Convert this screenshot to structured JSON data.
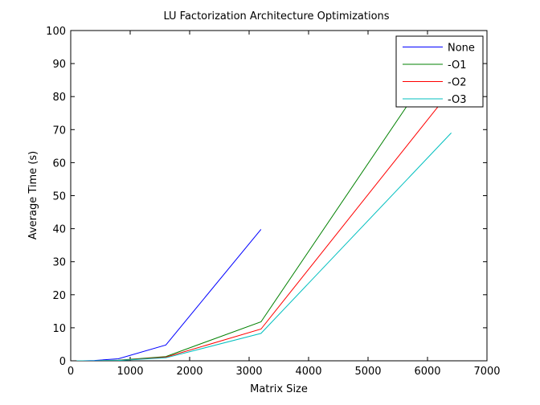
{
  "chart_data": {
    "type": "line",
    "title": "LU Factorization Architecture Optimizations",
    "xlabel": "Matrix Size",
    "ylabel": "Average Time (s)",
    "xlim": [
      0,
      7000
    ],
    "ylim": [
      0,
      100
    ],
    "xticks": [
      0,
      1000,
      2000,
      3000,
      4000,
      5000,
      6000,
      7000
    ],
    "yticks": [
      0,
      10,
      20,
      30,
      40,
      50,
      60,
      70,
      80,
      90,
      100
    ],
    "grid": false,
    "legend_position": "top-right",
    "series": [
      {
        "name": "None",
        "color": "#0000ff",
        "x": [
          100,
          200,
          400,
          800,
          1600,
          3200
        ],
        "y": [
          0,
          0,
          0.1,
          0.6,
          4.8,
          39.8
        ]
      },
      {
        "name": "-O1",
        "color": "#008000",
        "x": [
          100,
          200,
          400,
          800,
          1600,
          3200,
          6400
        ],
        "y": [
          0,
          0,
          0,
          0.2,
          1.3,
          11.8,
          97
        ]
      },
      {
        "name": "-O2",
        "color": "#ff0000",
        "x": [
          100,
          200,
          400,
          800,
          1600,
          3200,
          6400
        ],
        "y": [
          0,
          0,
          0,
          0.1,
          1.1,
          9.6,
          82
        ]
      },
      {
        "name": "-O3",
        "color": "#00bfbf",
        "x": [
          100,
          200,
          400,
          800,
          1600,
          3200,
          6400
        ],
        "y": [
          0,
          0,
          0,
          0.1,
          0.9,
          8.3,
          69
        ]
      }
    ]
  }
}
